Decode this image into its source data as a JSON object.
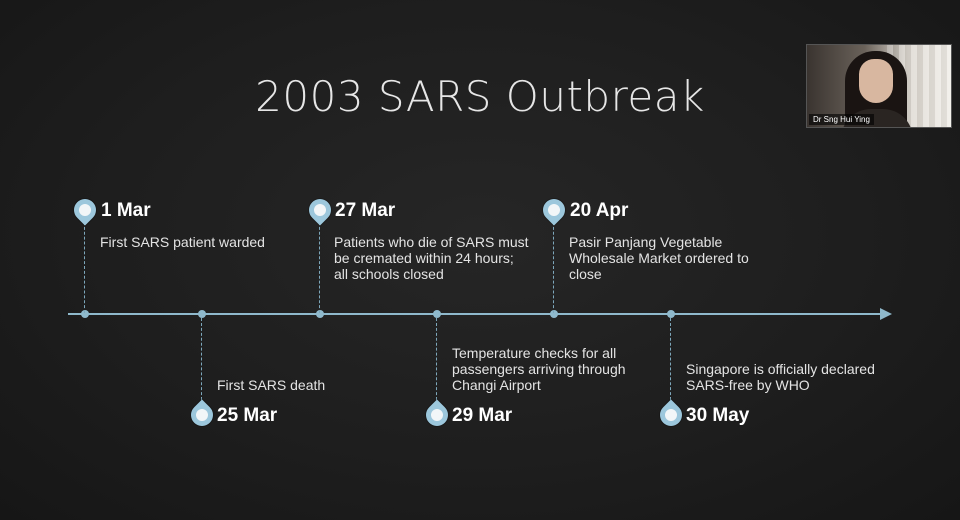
{
  "slide": {
    "title": "2003 SARS Outbreak"
  },
  "webcam": {
    "participant_name": "Dr Sng Hui Ying"
  },
  "timeline": {
    "colors": {
      "axis": "#8fb9cc",
      "pin": "#9cc7dc"
    },
    "events": [
      {
        "date": "1 Mar",
        "description": "First SARS patient warded",
        "position": "above"
      },
      {
        "date": "25 Mar",
        "description": "First SARS death",
        "position": "below"
      },
      {
        "date": "27 Mar",
        "description": "Patients who die of SARS must be cremated within 24 hours; all schools closed",
        "position": "above"
      },
      {
        "date": "29 Mar",
        "description": "Temperature checks for all passengers arriving through Changi Airport",
        "position": "below"
      },
      {
        "date": "20 Apr",
        "description": "Pasir Panjang Vegetable Wholesale Market ordered to close",
        "position": "above"
      },
      {
        "date": "30 May",
        "description": "Singapore is officially declared SARS-free by WHO",
        "position": "below"
      }
    ]
  }
}
